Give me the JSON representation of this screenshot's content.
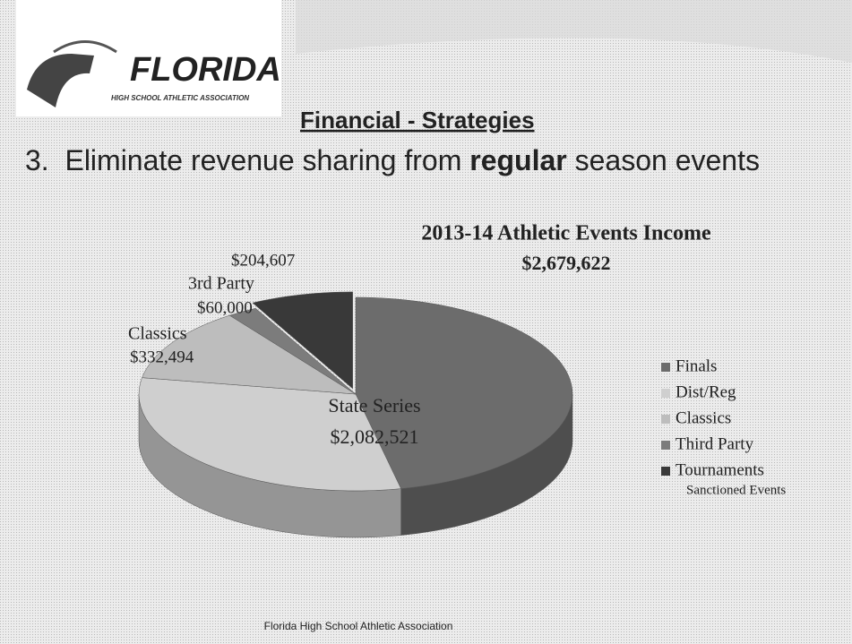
{
  "slide": {
    "logo": {
      "name": "FLORIDA",
      "subtitle": "HIGH SCHOOL ATHLETIC ASSOCIATION"
    },
    "title": "Financial - Strategies",
    "heading": [
      "3.  Eliminate revenue sharing from ",
      "regular",
      " season events"
    ],
    "footer": "Florida High School Athletic Association"
  },
  "chart_data": {
    "type": "pie3d",
    "title": "2013-14 Athletic Events Income",
    "subtitle": "$2,679,622",
    "categories": [
      "Finals",
      "Dist/Reg",
      "Classics",
      "Third Party",
      "Tournaments"
    ],
    "values": [
      1250000,
      832521,
      332494,
      60000,
      204607
    ],
    "value_labels": [
      null,
      null,
      "$332,494",
      "$60,000",
      "$204,607"
    ],
    "slice_names": [
      null,
      null,
      "Classics",
      "3rd Party",
      null
    ],
    "colors": [
      "#6c6c6c",
      "#cfcfcf",
      "#bdbdbd",
      "#7c7c7c",
      "#393939"
    ],
    "exploded": [
      false,
      false,
      false,
      false,
      true
    ],
    "annotations": [
      {
        "text": "State Series",
        "value": 2082521,
        "label": "$2,082,521"
      }
    ],
    "legend_note": "Sanctioned Events",
    "legend": "right"
  }
}
